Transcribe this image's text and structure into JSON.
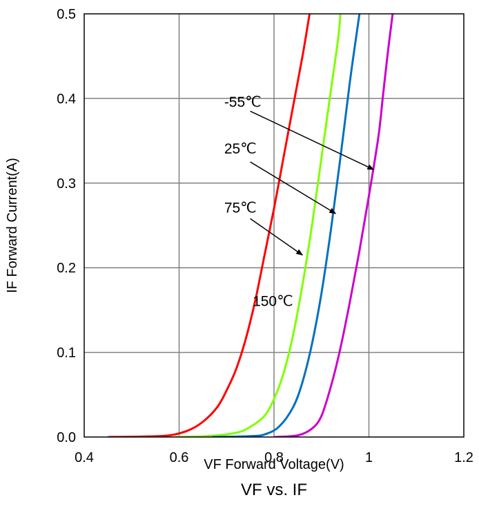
{
  "chart_data": {
    "type": "line",
    "title": "VF vs. IF",
    "xlabel": "VF Forward Voltage(V)",
    "ylabel": "IF Forward Current(A)",
    "xlim": [
      0.4,
      1.2
    ],
    "ylim": [
      0.0,
      0.5
    ],
    "x_ticks": [
      "0.4",
      "0.6",
      "0.8",
      "1",
      "1.2"
    ],
    "y_ticks": [
      "0.0",
      "0.1",
      "0.2",
      "0.3",
      "0.4",
      "0.5"
    ],
    "grid": true,
    "legend": "none",
    "series": [
      {
        "color": "#ff0000",
        "points": [
          [
            0.45,
            0.0
          ],
          [
            0.52,
            0.0005
          ],
          [
            0.58,
            0.002
          ],
          [
            0.62,
            0.008
          ],
          [
            0.65,
            0.018
          ],
          [
            0.68,
            0.035
          ],
          [
            0.7,
            0.055
          ],
          [
            0.72,
            0.08
          ],
          [
            0.74,
            0.115
          ],
          [
            0.76,
            0.16
          ],
          [
            0.78,
            0.215
          ],
          [
            0.8,
            0.27
          ],
          [
            0.82,
            0.33
          ],
          [
            0.84,
            0.39
          ],
          [
            0.86,
            0.45
          ],
          [
            0.875,
            0.5
          ]
        ]
      },
      {
        "color": "#80ff00",
        "points": [
          [
            0.59,
            0.0
          ],
          [
            0.66,
            0.001
          ],
          [
            0.72,
            0.005
          ],
          [
            0.75,
            0.012
          ],
          [
            0.78,
            0.025
          ],
          [
            0.8,
            0.045
          ],
          [
            0.82,
            0.075
          ],
          [
            0.84,
            0.12
          ],
          [
            0.86,
            0.18
          ],
          [
            0.88,
            0.25
          ],
          [
            0.9,
            0.33
          ],
          [
            0.92,
            0.41
          ],
          [
            0.935,
            0.47
          ],
          [
            0.94,
            0.5
          ]
        ]
      },
      {
        "color": "#0070c0",
        "points": [
          [
            0.67,
            0.0
          ],
          [
            0.75,
            0.001
          ],
          [
            0.78,
            0.003
          ],
          [
            0.81,
            0.012
          ],
          [
            0.84,
            0.035
          ],
          [
            0.86,
            0.065
          ],
          [
            0.88,
            0.11
          ],
          [
            0.9,
            0.17
          ],
          [
            0.92,
            0.245
          ],
          [
            0.94,
            0.33
          ],
          [
            0.96,
            0.42
          ],
          [
            0.975,
            0.48
          ],
          [
            0.98,
            0.5
          ]
        ]
      },
      {
        "color": "#cc00cc",
        "points": [
          [
            0.8,
            0.0
          ],
          [
            0.85,
            0.002
          ],
          [
            0.88,
            0.01
          ],
          [
            0.9,
            0.025
          ],
          [
            0.92,
            0.06
          ],
          [
            0.94,
            0.105
          ],
          [
            0.96,
            0.16
          ],
          [
            0.98,
            0.22
          ],
          [
            1.0,
            0.285
          ],
          [
            1.02,
            0.355
          ],
          [
            1.03,
            0.405
          ],
          [
            1.04,
            0.455
          ],
          [
            1.05,
            0.5
          ]
        ]
      }
    ],
    "annotations": [
      {
        "text": "-55℃",
        "label_at": [
          0.695,
          0.39
        ],
        "arrow_from": [
          0.75,
          0.385
        ],
        "arrow_to": [
          1.01,
          0.316
        ]
      },
      {
        "text": "25℃",
        "label_at": [
          0.695,
          0.335
        ],
        "arrow_from": [
          0.75,
          0.325
        ],
        "arrow_to": [
          0.93,
          0.264
        ]
      },
      {
        "text": "75℃",
        "label_at": [
          0.695,
          0.265
        ],
        "arrow_from": [
          0.75,
          0.258
        ],
        "arrow_to": [
          0.86,
          0.215
        ]
      },
      {
        "text": "150℃",
        "label_at": [
          0.755,
          0.155
        ]
      }
    ]
  }
}
